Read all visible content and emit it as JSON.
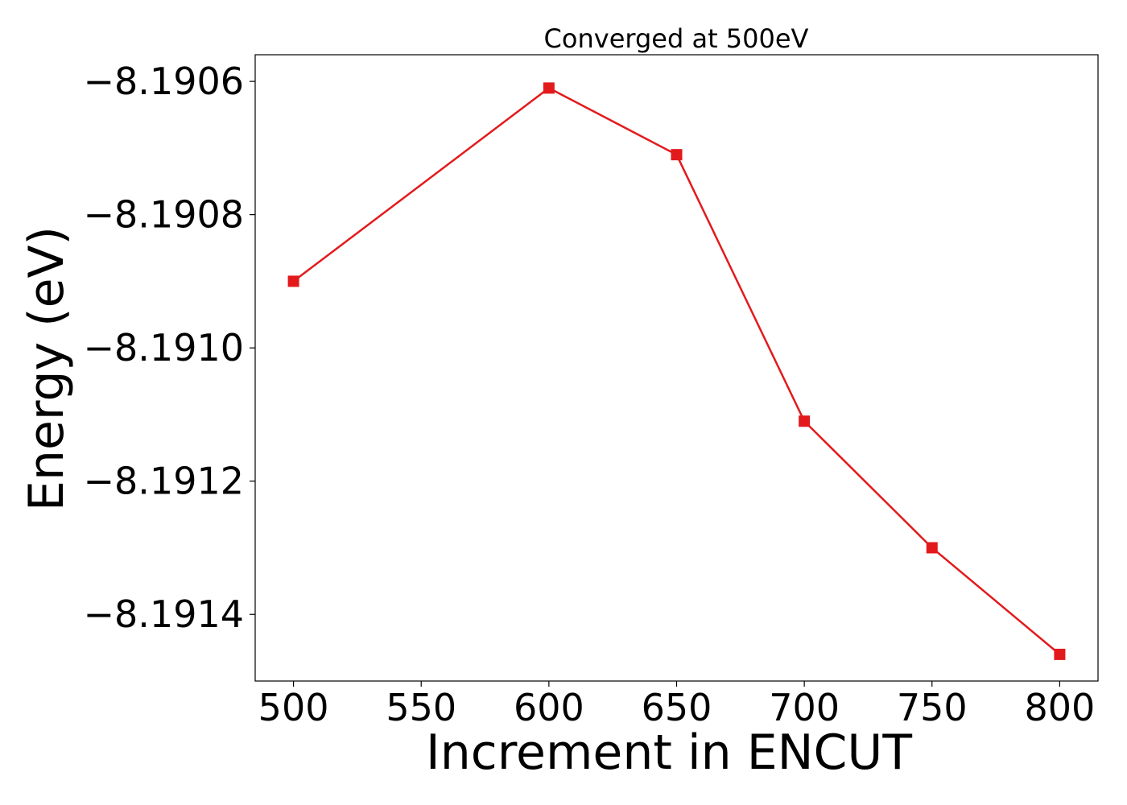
{
  "chart_data": {
    "type": "line",
    "title": "Converged at 500eV",
    "xlabel": "Increment in ENCUT",
    "ylabel": "Energy (eV)",
    "x": [
      500,
      600,
      650,
      700,
      750,
      800
    ],
    "series": [
      {
        "values": [
          -8.1909,
          -8.19061,
          -8.19071,
          -8.19111,
          -8.1913,
          -8.19146
        ],
        "color": "#e31a1c",
        "marker": "square"
      }
    ],
    "xlim": [
      485,
      815
    ],
    "ylim": [
      -8.1915,
      -8.19056
    ],
    "xticks": [
      500,
      550,
      600,
      650,
      700,
      750,
      800
    ],
    "xtick_labels": [
      "500",
      "550",
      "600",
      "650",
      "700",
      "750",
      "800"
    ],
    "yticks": [
      -8.1906,
      -8.1908,
      -8.191,
      -8.1912,
      -8.1914
    ],
    "ytick_labels": [
      "−8.1906",
      "−8.1908",
      "−8.1910",
      "−8.1912",
      "−8.1914"
    ],
    "grid": false,
    "legend": "none"
  }
}
